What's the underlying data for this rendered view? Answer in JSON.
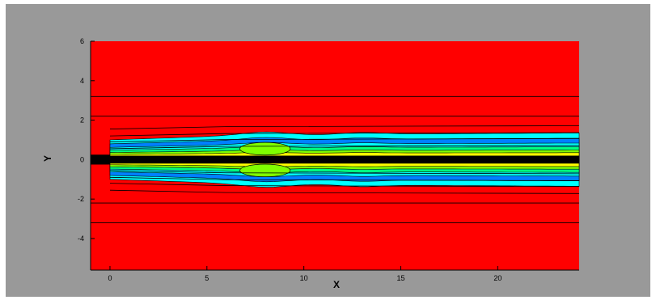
{
  "chart_data": {
    "type": "heatmap",
    "title": "",
    "xlabel": "X",
    "ylabel": "Y",
    "xlim": [
      -1,
      24.2
    ],
    "ylim": [
      -5.6,
      6
    ],
    "x_ticks": [
      0,
      5,
      10,
      15,
      20
    ],
    "y_ticks": [
      6,
      4,
      2,
      0,
      -2,
      -4
    ],
    "y_tick_labels": [
      "6",
      "4",
      "2",
      "0",
      "-2",
      "-4"
    ],
    "grid": false,
    "legend": "none",
    "field": "contour plot of a jet emerging at x = 0 into a uniform surrounding field",
    "jet": {
      "inlet_x": 0,
      "inlet_half_width": 1.0,
      "core_half_width": 0.2,
      "outer_half_width": [
        {
          "x": 0,
          "y": 1.0
        },
        {
          "x": 6,
          "y": 1.2
        },
        {
          "x": 15,
          "y": 1.3
        },
        {
          "x": 24,
          "y": 1.35
        }
      ]
    },
    "streamlines_upper": [
      3.2,
      2.2,
      1.55,
      1.2,
      0.9,
      0.55
    ],
    "streamlines_lower": [
      -0.55,
      -0.9,
      -1.2,
      -1.55,
      -2.2,
      -3.2
    ],
    "colors": {
      "background": "#999999",
      "ambient": "#ff0000",
      "core": "#000000",
      "level_high": "#ffff00",
      "level_mid_high": "#7fff00",
      "level_mid": "#00ff80",
      "level_mid_low": "#00ffff",
      "level_low": "#0080ff"
    }
  }
}
